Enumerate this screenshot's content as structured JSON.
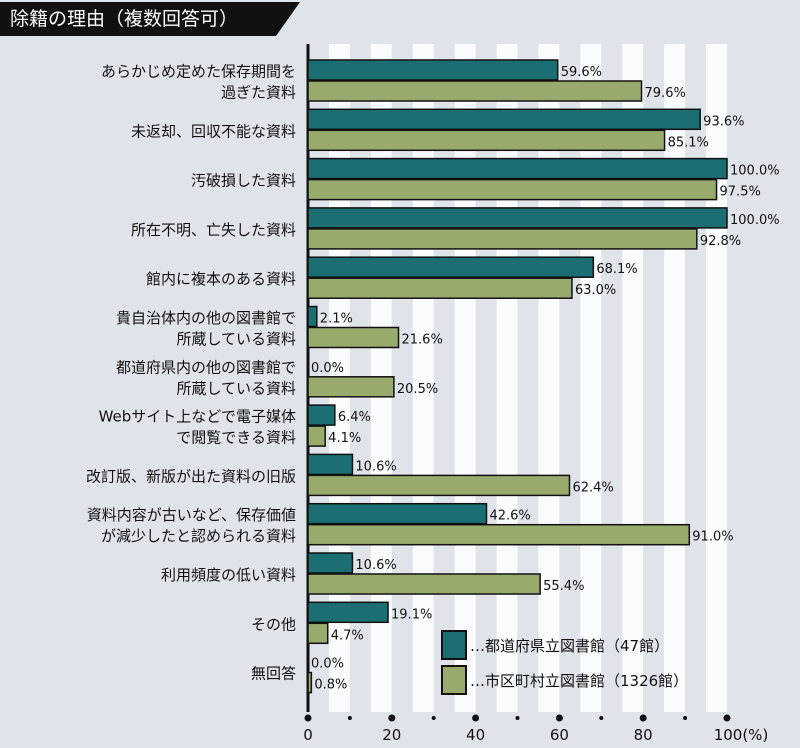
{
  "chart_data": {
    "type": "bar",
    "orientation": "horizontal",
    "title": "除籍の理由（複数回答可）",
    "categories": [
      [
        "あらかじめ定めた保存期間を",
        "過ぎた資料"
      ],
      [
        "未返却、回収不能な資料"
      ],
      [
        "汚破損した資料"
      ],
      [
        "所在不明、亡失した資料"
      ],
      [
        "館内に複本のある資料"
      ],
      [
        "貴自治体内の他の図書館で",
        "所蔵している資料"
      ],
      [
        "都道府県内の他の図書館で",
        "所蔵している資料"
      ],
      [
        "Webサイト上などで電子媒体",
        "で閲覧できる資料"
      ],
      [
        "改訂版、新版が出た資料の旧版"
      ],
      [
        "資料内容が古いなど、保存価値",
        "が減少したと認められる資料"
      ],
      [
        "利用頻度の低い資料"
      ],
      [
        "その他"
      ],
      [
        "無回答"
      ]
    ],
    "series": [
      {
        "name": "…都道府県立図書館（47館）",
        "color": "#1b6e72",
        "values": [
          59.6,
          93.6,
          100.0,
          100.0,
          68.1,
          2.1,
          0.0,
          6.4,
          10.6,
          42.6,
          10.6,
          19.1,
          0.0
        ]
      },
      {
        "name": "…市区町村立図書館（1326館）",
        "color": "#98ab6c",
        "values": [
          79.6,
          85.1,
          97.5,
          92.8,
          63.0,
          21.6,
          20.5,
          4.1,
          62.4,
          91.0,
          55.4,
          4.7,
          0.8
        ]
      }
    ],
    "value_suffix": "%",
    "xlim": [
      0,
      100
    ],
    "xticks": [
      "0",
      "20",
      "40",
      "60",
      "80",
      "100(%)"
    ],
    "legend_position": "bottom-right"
  }
}
